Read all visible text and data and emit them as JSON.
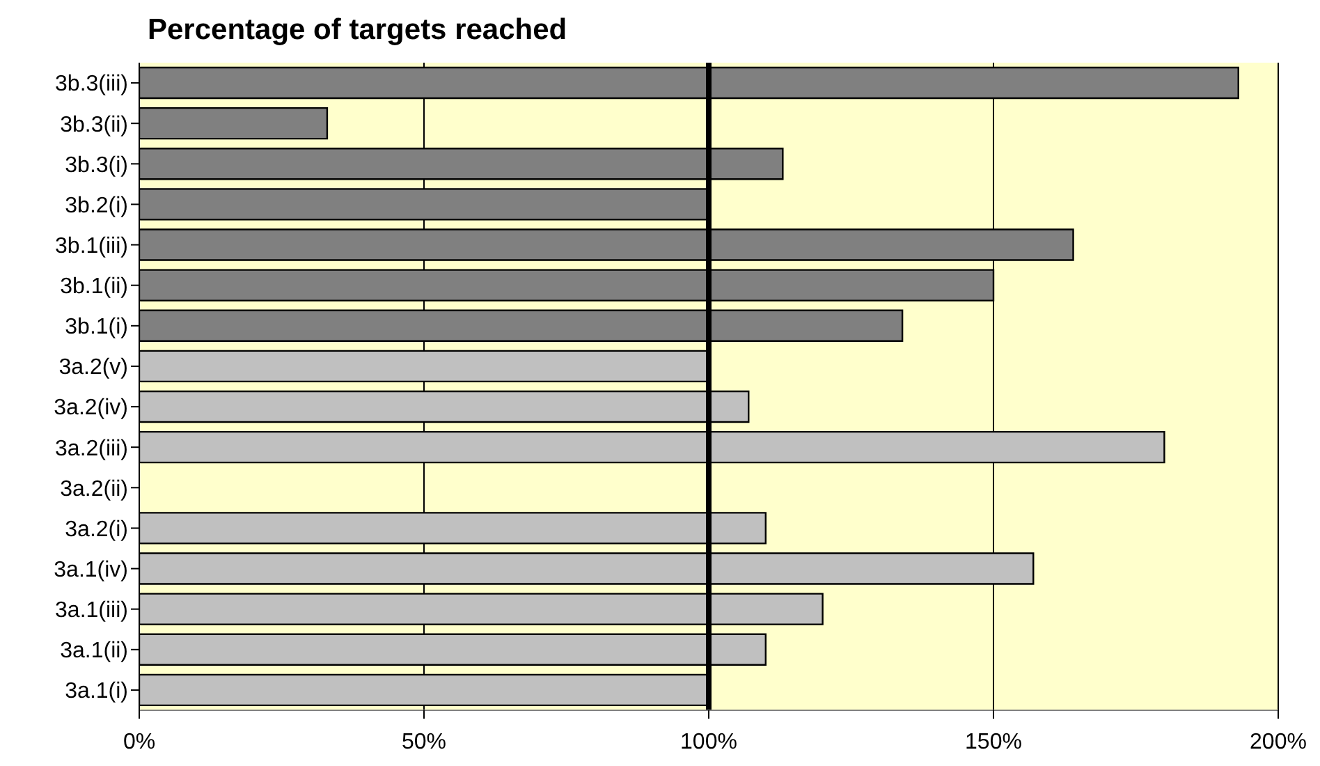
{
  "chart_data": {
    "type": "bar",
    "orientation": "horizontal",
    "title": "Percentage of targets reached",
    "categories": [
      "3b.3(iii)",
      "3b.3(ii)",
      "3b.3(i)",
      "3b.2(i)",
      "3b.1(iii)",
      "3b.1(ii)",
      "3b.1(i)",
      "3a.2(v)",
      "3a.2(iv)",
      "3a.2(iii)",
      "3a.2(ii)",
      "3a.2(i)",
      "3a.1(iv)",
      "3a.1(iii)",
      "3a.1(ii)",
      "3a.1(i)"
    ],
    "values": [
      193,
      33,
      113,
      100,
      164,
      150,
      134,
      100,
      107,
      180,
      null,
      110,
      157,
      120,
      110,
      100
    ],
    "colors": [
      "#808080",
      "#808080",
      "#808080",
      "#808080",
      "#808080",
      "#808080",
      "#808080",
      "#c0c0c0",
      "#c0c0c0",
      "#c0c0c0",
      "#c0c0c0",
      "#c0c0c0",
      "#c0c0c0",
      "#c0c0c0",
      "#c0c0c0",
      "#c0c0c0"
    ],
    "xlim": [
      0,
      200
    ],
    "xticks": [
      {
        "value": 0,
        "label": "0%"
      },
      {
        "value": 50,
        "label": "50%"
      },
      {
        "value": 100,
        "label": "100%"
      },
      {
        "value": 150,
        "label": "150%"
      },
      {
        "value": 200,
        "label": "200%"
      }
    ],
    "grid": "x",
    "ref_lines": [
      {
        "axis": "x",
        "value": 100,
        "color": "#000000"
      }
    ]
  }
}
